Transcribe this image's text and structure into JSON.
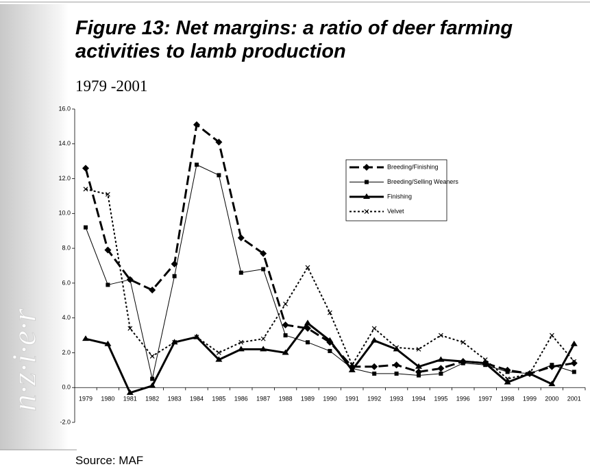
{
  "watermark": "n·z·i·e·r",
  "source": "Source:   MAF",
  "chart_data": {
    "type": "line",
    "title": "Figure 13: Net margins: a ratio of deer farming activities to lamb production",
    "subtitle": "1979 -2001",
    "categories": [
      "1979",
      "1980",
      "1981",
      "1982",
      "1983",
      "1984",
      "1985",
      "1986",
      "1987",
      "1988",
      "1989",
      "1990",
      "1991",
      "1992",
      "1993",
      "1994",
      "1995",
      "1996",
      "1997",
      "1998",
      "1999",
      "2000",
      "2001"
    ],
    "series": [
      {
        "name": "Breeding/Finishing",
        "color": "#000000",
        "dash": "14,6",
        "line_width": 3,
        "marker": "diamond",
        "values": [
          12.6,
          7.9,
          6.2,
          5.6,
          7.1,
          15.1,
          14.1,
          8.6,
          7.7,
          3.6,
          3.4,
          2.6,
          1.2,
          1.2,
          1.3,
          0.9,
          1.1,
          1.5,
          1.4,
          1.0,
          0.8,
          1.2,
          1.4
        ]
      },
      {
        "name": "Breeding/Selling Weaners",
        "color": "#000000",
        "dash": "none",
        "line_width": 1,
        "marker": "square",
        "values": [
          9.2,
          5.9,
          6.2,
          0.5,
          6.4,
          12.8,
          12.2,
          6.6,
          6.8,
          3.0,
          2.6,
          2.1,
          1.1,
          0.8,
          0.8,
          0.7,
          0.8,
          1.4,
          1.3,
          0.9,
          0.8,
          1.3,
          0.9
        ]
      },
      {
        "name": "Finishing",
        "color": "#000000",
        "dash": "none",
        "line_width": 3,
        "marker": "triangle",
        "values": [
          2.8,
          2.5,
          -0.3,
          0.1,
          2.6,
          2.9,
          1.6,
          2.2,
          2.2,
          2.0,
          3.7,
          2.7,
          1.0,
          2.7,
          2.2,
          1.2,
          1.6,
          1.5,
          1.4,
          0.3,
          0.8,
          0.2,
          2.5
        ]
      },
      {
        "name": "Velvet",
        "color": "#000000",
        "dash": "3,3",
        "line_width": 2,
        "marker": "x",
        "values": [
          11.4,
          11.1,
          3.4,
          1.8,
          2.6,
          2.9,
          2.0,
          2.6,
          2.8,
          4.8,
          6.9,
          4.3,
          1.3,
          3.4,
          2.3,
          2.2,
          3.0,
          2.6,
          1.6,
          0.5,
          0.8,
          3.0,
          1.5
        ]
      }
    ],
    "ylim": [
      -2,
      16
    ],
    "yticks": [
      {
        "value": -2,
        "label": "-2.0"
      },
      {
        "value": 0,
        "label": "0.0"
      },
      {
        "value": 2,
        "label": "2.0"
      },
      {
        "value": 4,
        "label": "4.0"
      },
      {
        "value": 6,
        "label": "6.0"
      },
      {
        "value": 8,
        "label": "8.0"
      },
      {
        "value": 10,
        "label": "10.0"
      },
      {
        "value": 12,
        "label": "12.0"
      },
      {
        "value": 14,
        "label": "14.0"
      },
      {
        "value": 16,
        "label": "16.0"
      }
    ]
  }
}
